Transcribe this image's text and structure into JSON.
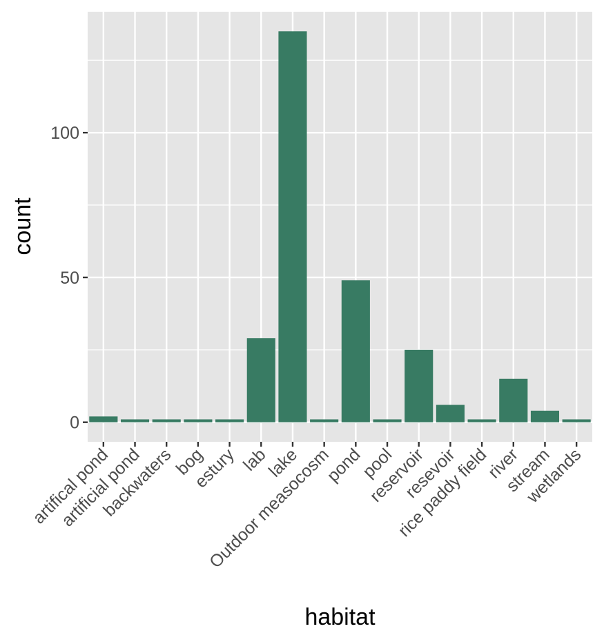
{
  "chart_data": {
    "type": "bar",
    "categories": [
      "artifical pond",
      "artificial pond",
      "backwaters",
      "bog",
      "estury",
      "lab",
      "lake",
      "Outdoor measocosm",
      "pond",
      "pool",
      "reservoir",
      "resevoir",
      "rice paddy field",
      "river",
      "stream",
      "wetlands"
    ],
    "values": [
      2,
      1,
      1,
      1,
      1,
      29,
      135,
      1,
      49,
      1,
      25,
      6,
      1,
      15,
      4,
      1
    ],
    "xlabel": "habitat",
    "ylabel": "count",
    "ylim": [
      -6.75,
      141.75
    ],
    "yticks": [
      0,
      50,
      100
    ],
    "grid": true,
    "legend": "none",
    "colors": {
      "bar": "#387b63",
      "panel": "#e5e5e5",
      "grid": "#ffffff",
      "tick_text": "#4d4d4d",
      "tick_mark": "#333333"
    }
  }
}
